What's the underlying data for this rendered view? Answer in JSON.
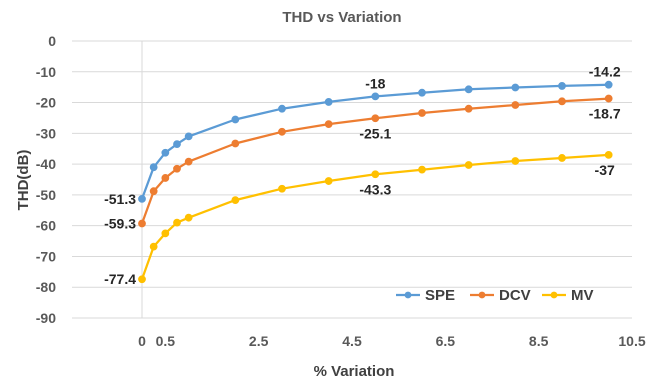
{
  "chart_data": {
    "type": "line",
    "title": "THD vs Variation",
    "xlabel": "% Variation",
    "ylabel": "THD(dB)",
    "xlim": [
      -1.5,
      10.5
    ],
    "ylim": [
      -90,
      0
    ],
    "xticks": [
      0,
      0.5,
      2.5,
      4.5,
      6.5,
      8.5,
      10.5
    ],
    "xtick_labels": [
      "0",
      "0.5",
      "2.5",
      "4.5",
      "6.5",
      "8.5",
      "10.5"
    ],
    "yticks": [
      0,
      -10,
      -20,
      -30,
      -40,
      -50,
      -60,
      -70,
      -80,
      -90
    ],
    "ytick_labels": [
      "0",
      "-10",
      "-20",
      "-30",
      "-40",
      "-50",
      "-60",
      "-70",
      "-80",
      "-90"
    ],
    "grid": true,
    "legend": "bottom-right",
    "x": [
      0,
      0.25,
      0.5,
      0.75,
      1,
      2,
      3,
      4,
      5,
      6,
      7,
      8,
      9,
      10
    ],
    "series": [
      {
        "name": "SPE",
        "color": "#5b9bd5",
        "values": [
          -51.3,
          -41,
          -36.3,
          -33.5,
          -31,
          -25.5,
          -22,
          -19.8,
          -18,
          -16.8,
          -15.7,
          -15.1,
          -14.6,
          -14.2
        ]
      },
      {
        "name": "DCV",
        "color": "#ed7d31",
        "values": [
          -59.3,
          -48.8,
          -44.5,
          -41.5,
          -39.2,
          -33.3,
          -29.5,
          -27,
          -25.1,
          -23.4,
          -22,
          -20.8,
          -19.6,
          -18.7
        ]
      },
      {
        "name": "MV",
        "color": "#ffc000",
        "values": [
          -77.4,
          -66.8,
          -62.5,
          -59,
          -57.4,
          -51.7,
          -48,
          -45.5,
          -43.3,
          -41.8,
          -40.3,
          -39,
          -38,
          -37
        ]
      }
    ],
    "data_labels": [
      {
        "series": 0,
        "index": 0,
        "text": "-51.3"
      },
      {
        "series": 0,
        "index": 8,
        "text": "-18"
      },
      {
        "series": 0,
        "index": 13,
        "text": "-14.2"
      },
      {
        "series": 1,
        "index": 0,
        "text": "-59.3"
      },
      {
        "series": 1,
        "index": 8,
        "text": "-25.1"
      },
      {
        "series": 1,
        "index": 13,
        "text": "-18.7"
      },
      {
        "series": 2,
        "index": 0,
        "text": "-77.4"
      },
      {
        "series": 2,
        "index": 8,
        "text": "-43.3"
      },
      {
        "series": 2,
        "index": 13,
        "text": "-37"
      }
    ]
  }
}
